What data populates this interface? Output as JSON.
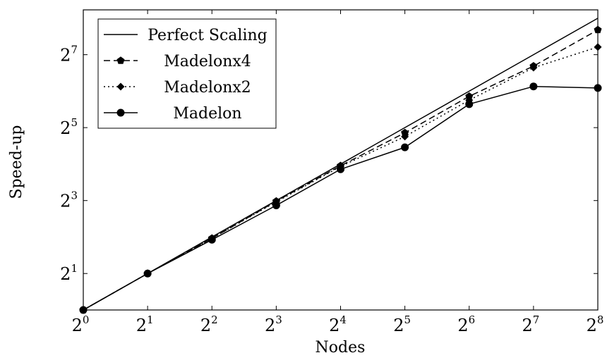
{
  "chart_data": {
    "type": "line",
    "title": "",
    "xlabel": "Nodes",
    "ylabel": "Speed-up",
    "x_scale": "log2",
    "y_scale": "log2",
    "x": [
      1,
      2,
      4,
      8,
      16,
      32,
      64,
      128,
      256
    ],
    "x_tick_labels": [
      {
        "base": "2",
        "exp": "0"
      },
      {
        "base": "2",
        "exp": "1"
      },
      {
        "base": "2",
        "exp": "2"
      },
      {
        "base": "2",
        "exp": "3"
      },
      {
        "base": "2",
        "exp": "4"
      },
      {
        "base": "2",
        "exp": "5"
      },
      {
        "base": "2",
        "exp": "6"
      },
      {
        "base": "2",
        "exp": "7"
      },
      {
        "base": "2",
        "exp": "8"
      }
    ],
    "y_tick_values": [
      2,
      8,
      32,
      128
    ],
    "y_tick_labels": [
      {
        "base": "2",
        "exp": "1"
      },
      {
        "base": "2",
        "exp": "3"
      },
      {
        "base": "2",
        "exp": "5"
      },
      {
        "base": "2",
        "exp": "7"
      }
    ],
    "xlim": [
      1,
      256
    ],
    "ylim": [
      1,
      300
    ],
    "grid": false,
    "legend_position": "top-left",
    "series": [
      {
        "name": "Perfect Scaling",
        "values": [
          1,
          2,
          4,
          8,
          16,
          32,
          64,
          128,
          256
        ],
        "line_style": "solid",
        "marker": "none"
      },
      {
        "name": "Madelonx4",
        "values": [
          1,
          2,
          3.9,
          7.9,
          15.5,
          29,
          58,
          103,
          205
        ],
        "line_style": "dashed",
        "marker": "pentagon"
      },
      {
        "name": "Madelonx2",
        "values": [
          1,
          2,
          3.9,
          7.8,
          15.3,
          27,
          54,
          100,
          148
        ],
        "line_style": "dotted",
        "marker": "diamond"
      },
      {
        "name": "Madelon",
        "values": [
          1,
          2,
          3.8,
          7.3,
          14.5,
          22,
          50,
          70,
          68
        ],
        "line_style": "solid",
        "marker": "circle"
      }
    ],
    "colors": {
      "line": "#000000",
      "background": "#ffffff"
    }
  }
}
